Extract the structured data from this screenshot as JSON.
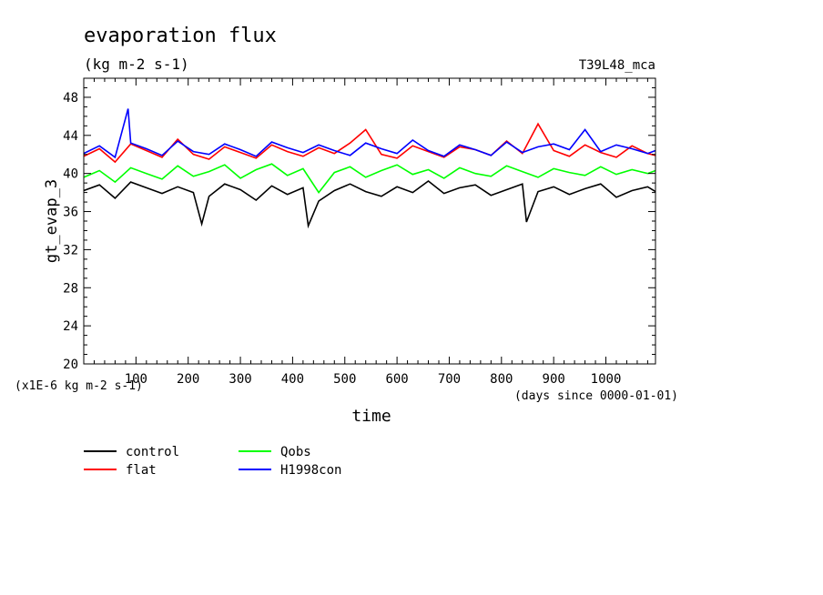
{
  "chart_data": {
    "type": "line",
    "title": "evaporation flux",
    "subtitle": "(kg m-2 s-1)",
    "run_label": "T39L48_mca",
    "ylabel": "gt_evap_3",
    "xlabel": "time",
    "x_units_note": "(days since 0000-01-01)",
    "y_scale_note": "(x1E-6 kg m-2 s-1)",
    "xlim": [
      0,
      1095
    ],
    "ylim": [
      20,
      50
    ],
    "x_ticks": [
      100,
      200,
      300,
      400,
      500,
      600,
      700,
      800,
      900,
      1000
    ],
    "y_ticks": [
      20,
      24,
      28,
      32,
      36,
      40,
      44,
      48
    ],
    "legend_position": "bottom-left",
    "series": [
      {
        "name": "control",
        "color": "#000000",
        "x": [
          0,
          30,
          60,
          90,
          120,
          150,
          180,
          210,
          226,
          240,
          270,
          300,
          330,
          360,
          390,
          420,
          430,
          450,
          480,
          510,
          540,
          570,
          600,
          630,
          660,
          690,
          720,
          750,
          780,
          810,
          840,
          848,
          870,
          900,
          930,
          960,
          990,
          1020,
          1050,
          1080,
          1095
        ],
        "y": [
          38.2,
          38.8,
          37.4,
          39.1,
          38.5,
          37.9,
          38.6,
          38.0,
          34.7,
          37.6,
          38.9,
          38.3,
          37.2,
          38.7,
          37.8,
          38.5,
          34.5,
          37.1,
          38.2,
          38.9,
          38.1,
          37.6,
          38.6,
          38.0,
          39.2,
          37.9,
          38.5,
          38.8,
          37.7,
          38.3,
          38.9,
          34.9,
          38.1,
          38.6,
          37.8,
          38.4,
          38.9,
          37.5,
          38.2,
          38.6,
          38.1
        ]
      },
      {
        "name": "flat",
        "color": "#ff0000",
        "x": [
          0,
          30,
          60,
          90,
          120,
          150,
          180,
          210,
          240,
          270,
          300,
          330,
          360,
          390,
          420,
          450,
          480,
          510,
          540,
          570,
          600,
          630,
          660,
          690,
          720,
          750,
          780,
          810,
          840,
          870,
          900,
          930,
          960,
          990,
          1020,
          1050,
          1080,
          1095
        ],
        "y": [
          41.8,
          42.6,
          41.2,
          43.1,
          42.4,
          41.7,
          43.6,
          42.0,
          41.5,
          42.8,
          42.2,
          41.6,
          43.0,
          42.3,
          41.8,
          42.7,
          42.1,
          43.2,
          44.6,
          42.0,
          41.6,
          42.9,
          42.3,
          41.7,
          42.8,
          42.5,
          41.9,
          43.4,
          42.1,
          45.2,
          42.4,
          41.8,
          43.0,
          42.2,
          41.7,
          42.9,
          42.1,
          41.9
        ]
      },
      {
        "name": "Qobs",
        "color": "#00ff00",
        "x": [
          0,
          30,
          60,
          90,
          120,
          150,
          180,
          210,
          240,
          270,
          300,
          330,
          360,
          390,
          420,
          450,
          480,
          510,
          540,
          570,
          600,
          630,
          660,
          690,
          720,
          750,
          780,
          810,
          840,
          870,
          900,
          930,
          960,
          990,
          1020,
          1050,
          1080,
          1095
        ],
        "y": [
          39.6,
          40.3,
          39.1,
          40.6,
          40.0,
          39.4,
          40.8,
          39.7,
          40.2,
          40.9,
          39.5,
          40.4,
          41.0,
          39.8,
          40.5,
          38.0,
          40.1,
          40.7,
          39.6,
          40.3,
          40.9,
          39.9,
          40.4,
          39.5,
          40.6,
          40.0,
          39.7,
          40.8,
          40.2,
          39.6,
          40.5,
          40.1,
          39.8,
          40.7,
          39.9,
          40.4,
          40.0,
          40.3
        ]
      },
      {
        "name": "H1998con",
        "color": "#0000ff",
        "x": [
          0,
          30,
          60,
          85,
          90,
          120,
          150,
          180,
          210,
          240,
          270,
          300,
          330,
          360,
          390,
          420,
          450,
          480,
          510,
          540,
          570,
          600,
          630,
          660,
          690,
          720,
          750,
          780,
          810,
          840,
          870,
          900,
          930,
          960,
          990,
          1020,
          1050,
          1080,
          1095
        ],
        "y": [
          42.1,
          42.9,
          41.7,
          46.8,
          43.2,
          42.6,
          41.9,
          43.4,
          42.3,
          42.0,
          43.1,
          42.5,
          41.8,
          43.3,
          42.7,
          42.2,
          43.0,
          42.4,
          41.9,
          43.2,
          42.6,
          42.1,
          43.5,
          42.4,
          41.8,
          43.0,
          42.5,
          41.9,
          43.3,
          42.2,
          42.8,
          43.1,
          42.5,
          44.6,
          42.3,
          43.0,
          42.6,
          42.1,
          42.4
        ]
      }
    ]
  }
}
